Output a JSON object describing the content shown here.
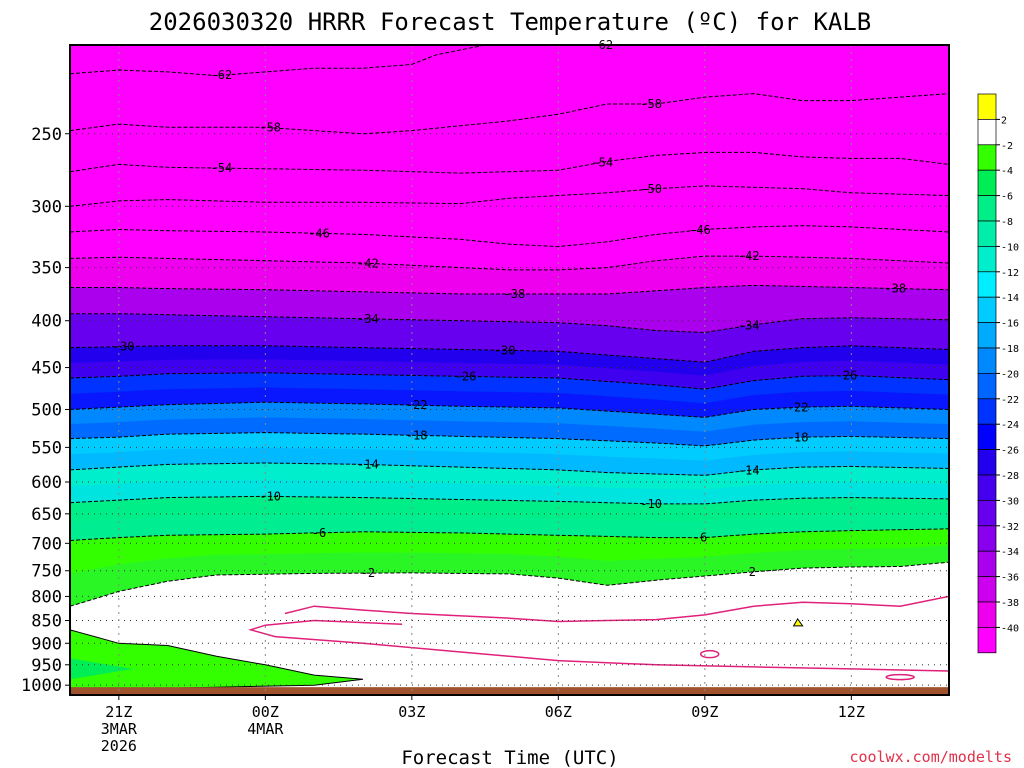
{
  "chart_data": {
    "type": "contour",
    "title": "2026030320 HRRR Forecast Temperature (ºC) for KALB",
    "xlabel": "Forecast Time (UTC)",
    "ylabel": "",
    "credit": "coolwx.com/modelts",
    "x_unit": "hours after 20Z 3MAR2026",
    "xlim": [
      0,
      18
    ],
    "ylim": [
      1025,
      200
    ],
    "y_scale": "log-pressure",
    "x_ticks": [
      {
        "x": 1,
        "lines": [
          "21Z",
          "3MAR",
          "2026"
        ]
      },
      {
        "x": 4,
        "lines": [
          "00Z",
          "4MAR"
        ]
      },
      {
        "x": 7,
        "lines": [
          "03Z"
        ]
      },
      {
        "x": 10,
        "lines": [
          "06Z"
        ]
      },
      {
        "x": 13,
        "lines": [
          "09Z"
        ]
      },
      {
        "x": 16,
        "lines": [
          "12Z"
        ]
      }
    ],
    "y_ticks": [
      250,
      300,
      350,
      400,
      450,
      500,
      550,
      600,
      650,
      700,
      750,
      800,
      850,
      900,
      950,
      1000
    ],
    "grid": true,
    "colorbar": {
      "levels": [
        2,
        -2,
        -4,
        -6,
        -8,
        -10,
        -12,
        -14,
        -16,
        -18,
        -20,
        -22,
        -24,
        -26,
        -28,
        -30,
        -32,
        -34,
        -36,
        -38,
        -40
      ],
      "colors": [
        "#ffff00",
        "#ffffff",
        "#33ff00",
        "#00ee55",
        "#00ee88",
        "#00eeaa",
        "#00eecc",
        "#00eeff",
        "#00ccff",
        "#00aaff",
        "#0088ff",
        "#0066ff",
        "#0033ff",
        "#0000ff",
        "#2200ee",
        "#4400ee",
        "#6600ee",
        "#8800ee",
        "#aa00ee",
        "#cc00ee",
        "#ee00ee",
        "#ff00ff"
      ]
    },
    "ground_color": "#a0522d",
    "contours": [
      {
        "label": "-62",
        "label_x": 3.1,
        "points": [
          [
            0,
            215
          ],
          [
            1,
            213
          ],
          [
            2,
            214
          ],
          [
            3,
            216
          ],
          [
            4,
            214
          ],
          [
            5,
            212
          ],
          [
            6,
            212
          ],
          [
            7,
            210
          ],
          [
            7.5,
            205
          ],
          [
            8.5,
            200
          ]
        ]
      },
      {
        "label": "-58",
        "label_x": 4.1,
        "points": [
          [
            0,
            248
          ],
          [
            1,
            244
          ],
          [
            2,
            246
          ],
          [
            4,
            246
          ],
          [
            6,
            250
          ],
          [
            7,
            248
          ],
          [
            8,
            245
          ],
          [
            9,
            242
          ],
          [
            10,
            238
          ],
          [
            11,
            232
          ],
          [
            12,
            232
          ],
          [
            13,
            228
          ],
          [
            14,
            226
          ],
          [
            15,
            230
          ],
          [
            16,
            230
          ],
          [
            17,
            228
          ],
          [
            18,
            226
          ]
        ]
      },
      {
        "label": "-54",
        "label_x": 3.1,
        "points": [
          [
            0,
            275
          ],
          [
            1,
            270
          ],
          [
            2,
            272
          ],
          [
            4,
            273
          ],
          [
            6,
            274
          ],
          [
            8,
            276
          ],
          [
            10,
            274
          ],
          [
            11,
            268
          ],
          [
            12,
            264
          ],
          [
            13,
            262
          ],
          [
            14,
            262
          ],
          [
            15,
            265
          ],
          [
            16,
            266
          ],
          [
            17,
            266
          ],
          [
            18,
            270
          ]
        ]
      },
      {
        "label": "-50",
        "label_x": 11.9,
        "points": [
          [
            0,
            300
          ],
          [
            1,
            296
          ],
          [
            2,
            295
          ],
          [
            4,
            297
          ],
          [
            6,
            297
          ],
          [
            8,
            298
          ],
          [
            9,
            294
          ],
          [
            10,
            292
          ],
          [
            11,
            290
          ],
          [
            12,
            287
          ],
          [
            13,
            285
          ],
          [
            14,
            286
          ],
          [
            15,
            287
          ],
          [
            16,
            290
          ],
          [
            18,
            292
          ]
        ]
      },
      {
        "label": "-46",
        "label_x": 5.1,
        "points": [
          [
            0,
            320
          ],
          [
            1,
            318
          ],
          [
            2,
            319
          ],
          [
            4,
            320
          ],
          [
            6,
            322
          ],
          [
            8,
            326
          ],
          [
            9,
            330
          ],
          [
            10,
            332
          ],
          [
            11,
            328
          ],
          [
            12,
            322
          ],
          [
            13,
            318
          ],
          [
            14,
            316
          ],
          [
            15,
            315
          ],
          [
            16,
            316
          ],
          [
            18,
            320
          ]
        ]
      },
      {
        "label": "-42",
        "label_x": 6.1,
        "points": [
          [
            0,
            342
          ],
          [
            1,
            341
          ],
          [
            2,
            342
          ],
          [
            4,
            344
          ],
          [
            6,
            346
          ],
          [
            8,
            350
          ],
          [
            9,
            352
          ],
          [
            10,
            352
          ],
          [
            11,
            350
          ],
          [
            12,
            344
          ],
          [
            13,
            340
          ],
          [
            14,
            340
          ],
          [
            15,
            341
          ],
          [
            16,
            342
          ],
          [
            18,
            346
          ]
        ]
      },
      {
        "label": "-38",
        "label_x": 9.1,
        "points": [
          [
            0,
            368
          ],
          [
            1,
            368
          ],
          [
            2,
            369
          ],
          [
            4,
            370
          ],
          [
            6,
            372
          ],
          [
            8,
            374
          ],
          [
            10,
            374
          ],
          [
            11,
            374
          ],
          [
            12,
            371
          ],
          [
            13,
            368
          ],
          [
            14,
            366
          ],
          [
            15,
            367
          ],
          [
            16,
            368
          ],
          [
            18,
            370
          ]
        ]
      },
      {
        "label": "-34",
        "label_x": 6.1,
        "points": [
          [
            0,
            393
          ],
          [
            1,
            393
          ],
          [
            2,
            394
          ],
          [
            4,
            396
          ],
          [
            6,
            398
          ],
          [
            8,
            400
          ],
          [
            10,
            402
          ],
          [
            11,
            405
          ],
          [
            12,
            410
          ],
          [
            13,
            412
          ],
          [
            14,
            404
          ],
          [
            15,
            398
          ],
          [
            16,
            397
          ],
          [
            18,
            399
          ]
        ]
      },
      {
        "label": "-30",
        "label_x": 1.1,
        "points": [
          [
            0,
            428
          ],
          [
            1,
            427
          ],
          [
            2,
            426
          ],
          [
            4,
            426
          ],
          [
            6,
            428
          ],
          [
            8,
            430
          ],
          [
            10,
            432
          ],
          [
            11,
            436
          ],
          [
            12,
            440
          ],
          [
            13,
            444
          ],
          [
            14,
            432
          ],
          [
            15,
            428
          ],
          [
            16,
            426
          ],
          [
            18,
            430
          ]
        ]
      },
      {
        "label": "-26",
        "label_x": 8.1,
        "points": [
          [
            0,
            462
          ],
          [
            1,
            460
          ],
          [
            2,
            457
          ],
          [
            4,
            456
          ],
          [
            6,
            458
          ],
          [
            8,
            460
          ],
          [
            10,
            462
          ],
          [
            11,
            466
          ],
          [
            12,
            470
          ],
          [
            13,
            475
          ],
          [
            14,
            465
          ],
          [
            15,
            460
          ],
          [
            16,
            459
          ],
          [
            18,
            464
          ]
        ]
      },
      {
        "label": "-22",
        "label_x": 7.1,
        "points": [
          [
            0,
            500
          ],
          [
            1,
            497
          ],
          [
            2,
            494
          ],
          [
            4,
            491
          ],
          [
            6,
            493
          ],
          [
            8,
            496
          ],
          [
            10,
            498
          ],
          [
            11,
            502
          ],
          [
            12,
            506
          ],
          [
            13,
            510
          ],
          [
            14,
            500
          ],
          [
            15,
            497
          ],
          [
            16,
            496
          ],
          [
            18,
            500
          ]
        ]
      },
      {
        "label": "-18",
        "label_x": 7.1,
        "points": [
          [
            0,
            538
          ],
          [
            1,
            536
          ],
          [
            2,
            532
          ],
          [
            4,
            530
          ],
          [
            6,
            532
          ],
          [
            8,
            535
          ],
          [
            10,
            538
          ],
          [
            11,
            541
          ],
          [
            12,
            544
          ],
          [
            13,
            548
          ],
          [
            14,
            540
          ],
          [
            15,
            536
          ],
          [
            16,
            535
          ],
          [
            18,
            538
          ]
        ]
      },
      {
        "label": "-14",
        "label_x": 6.1,
        "points": [
          [
            0,
            582
          ],
          [
            1,
            578
          ],
          [
            2,
            574
          ],
          [
            4,
            572
          ],
          [
            6,
            574
          ],
          [
            8,
            578
          ],
          [
            10,
            582
          ],
          [
            11,
            586
          ],
          [
            12,
            588
          ],
          [
            13,
            590
          ],
          [
            14,
            582
          ],
          [
            15,
            578
          ],
          [
            16,
            577
          ],
          [
            18,
            580
          ]
        ]
      },
      {
        "label": "-10",
        "label_x": 4.1,
        "points": [
          [
            0,
            632
          ],
          [
            1,
            628
          ],
          [
            2,
            624
          ],
          [
            4,
            622
          ],
          [
            6,
            624
          ],
          [
            8,
            627
          ],
          [
            10,
            630
          ],
          [
            11,
            632
          ],
          [
            12,
            634
          ],
          [
            13,
            634
          ],
          [
            14,
            628
          ],
          [
            15,
            625
          ],
          [
            16,
            624
          ],
          [
            18,
            626
          ]
        ]
      },
      {
        "label": "-6",
        "label_x": 5.1,
        "points": [
          [
            0,
            695
          ],
          [
            1,
            690
          ],
          [
            2,
            686
          ],
          [
            4,
            684
          ],
          [
            6,
            680
          ],
          [
            8,
            682
          ],
          [
            10,
            686
          ],
          [
            11,
            688
          ],
          [
            12,
            690
          ],
          [
            13,
            690
          ],
          [
            14,
            684
          ],
          [
            15,
            680
          ],
          [
            16,
            678
          ],
          [
            18,
            675
          ]
        ]
      },
      {
        "label": "-2",
        "label_x": 6.1,
        "points": [
          [
            0,
            820
          ],
          [
            1,
            790
          ],
          [
            2,
            770
          ],
          [
            3,
            758
          ],
          [
            5,
            755
          ],
          [
            7,
            754
          ],
          [
            9,
            756
          ],
          [
            10,
            764
          ],
          [
            11,
            778
          ],
          [
            12,
            768
          ],
          [
            13,
            760
          ],
          [
            14,
            752
          ],
          [
            15,
            745
          ],
          [
            16,
            743
          ],
          [
            17,
            742
          ],
          [
            18,
            734
          ]
        ]
      }
    ],
    "fill_bands": [
      {
        "color_index": 21,
        "top": [
          [
            0,
            200
          ],
          [
            18,
            200
          ]
        ],
        "bottom_ref": 0
      },
      {
        "color_index": 20,
        "bottom_ref": 1
      }
    ]
  }
}
